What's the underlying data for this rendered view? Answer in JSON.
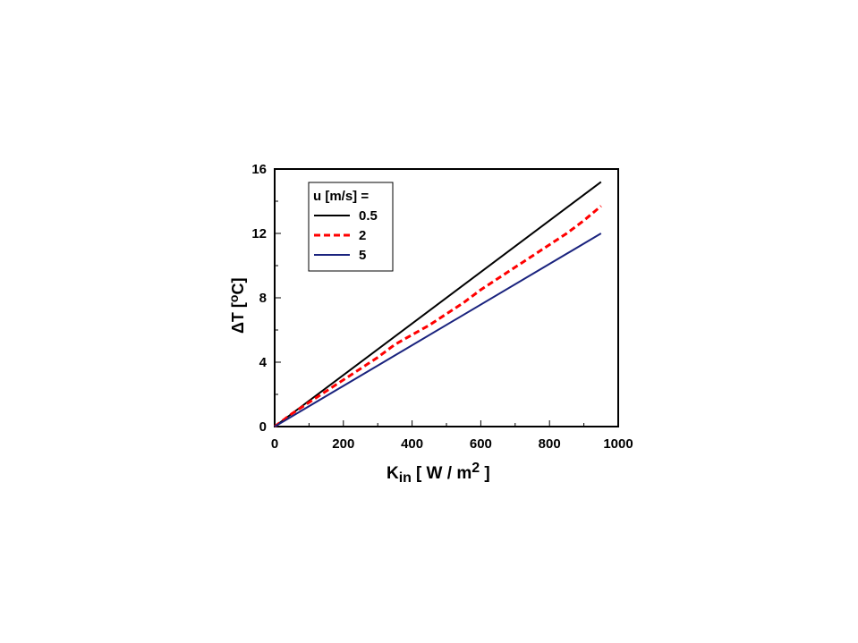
{
  "chart_data": {
    "type": "line",
    "xlabel": {
      "main": "K",
      "sub": "in",
      "units_pre": "[ W / m",
      "sup": "2",
      "units_post": " ]"
    },
    "ylabel": {
      "delta": "Δ",
      "main": "T [",
      "sup": "o",
      "units_post": "C]"
    },
    "xlim": [
      0,
      1000
    ],
    "ylim": [
      0,
      16
    ],
    "xticks": [
      0,
      200,
      400,
      600,
      800,
      1000
    ],
    "yticks": [
      0,
      4,
      8,
      12,
      16
    ],
    "grid": false,
    "legend": {
      "title": "u [m/s] =",
      "placement": "top-left"
    },
    "series": [
      {
        "name": "0.5",
        "color": "#000000",
        "dash": "solid",
        "x": [
          0,
          950
        ],
        "y": [
          0,
          15.2
        ]
      },
      {
        "name": "2",
        "color": "#ff0000",
        "dash": "dashed",
        "x": [
          0,
          50,
          100,
          150,
          200,
          250,
          300,
          350,
          400,
          450,
          500,
          550,
          600,
          650,
          700,
          750,
          800,
          850,
          900,
          950
        ],
        "y": [
          0,
          0.8,
          1.5,
          2.2,
          2.9,
          3.6,
          4.3,
          5.1,
          5.7,
          6.3,
          7.0,
          7.7,
          8.5,
          9.2,
          9.9,
          10.6,
          11.3,
          12.0,
          12.8,
          13.7
        ]
      },
      {
        "name": "5",
        "color": "#1a237e",
        "dash": "solid",
        "x": [
          0,
          950
        ],
        "y": [
          0,
          12.0
        ]
      }
    ]
  }
}
